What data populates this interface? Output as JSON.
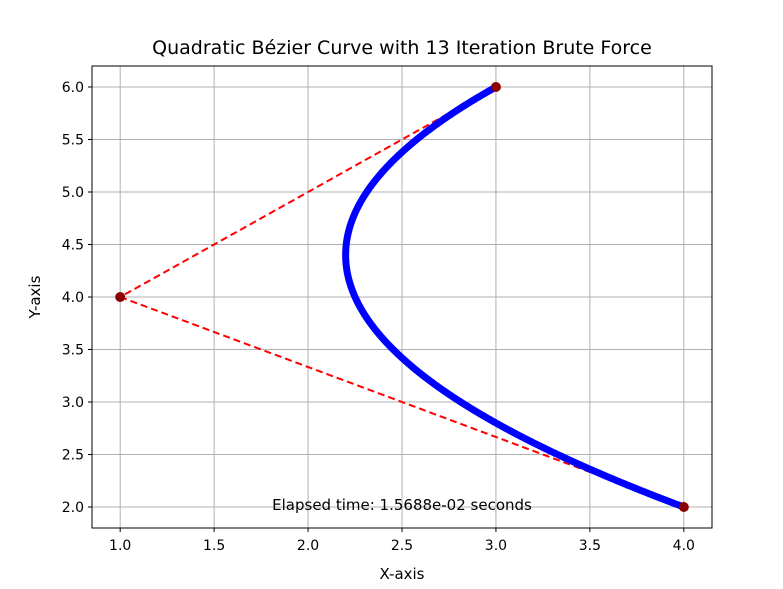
{
  "chart_data": {
    "type": "line",
    "title": "Quadratic Bézier Curve with 13 Iteration Brute Force",
    "xlabel": "X-axis",
    "ylabel": "Y-axis",
    "xlim": [
      0.85,
      4.15
    ],
    "ylim": [
      1.8,
      6.2
    ],
    "xticks": [
      1.0,
      1.5,
      2.0,
      2.5,
      3.0,
      3.5,
      4.0
    ],
    "xtick_labels": [
      "1.0",
      "1.5",
      "2.0",
      "2.5",
      "3.0",
      "3.5",
      "4.0"
    ],
    "yticks": [
      2.0,
      2.5,
      3.0,
      3.5,
      4.0,
      4.5,
      5.0,
      5.5,
      6.0
    ],
    "ytick_labels": [
      "2.0",
      "2.5",
      "3.0",
      "3.5",
      "4.0",
      "4.5",
      "5.0",
      "5.5",
      "6.0"
    ],
    "grid": true,
    "control_points": [
      {
        "x": 3.0,
        "y": 6.0
      },
      {
        "x": 1.0,
        "y": 4.0
      },
      {
        "x": 4.0,
        "y": 2.0
      }
    ],
    "iterations": 13,
    "annotation": "Elapsed time: 1.5688e-02 seconds",
    "colors": {
      "curve": "#0000ff",
      "control_lines": "#ff0000",
      "control_points": "#8b0000",
      "grid": "#b0b0b0"
    }
  }
}
